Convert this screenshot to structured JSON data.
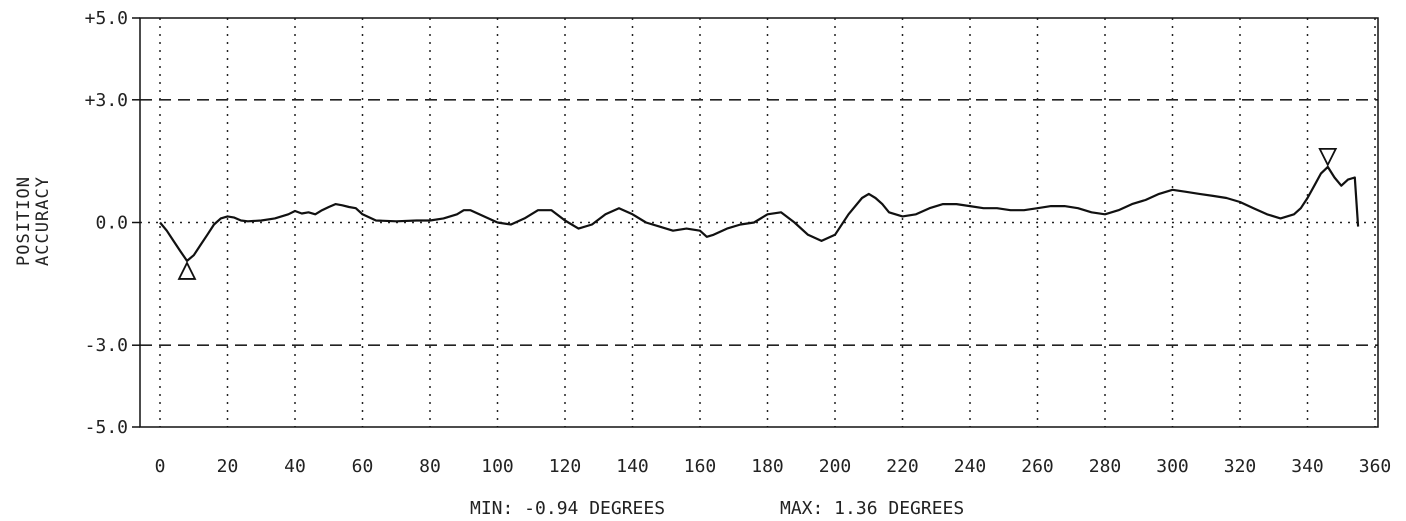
{
  "chart_data": {
    "type": "line",
    "title": "",
    "ylabel_lines": [
      "POSITION",
      "ACCURACY"
    ],
    "xlabel": "",
    "xlim": [
      0,
      360
    ],
    "ylim": [
      -5.0,
      5.0
    ],
    "x_ticks": [
      0,
      20,
      40,
      60,
      80,
      100,
      120,
      140,
      160,
      180,
      200,
      220,
      240,
      260,
      280,
      300,
      320,
      340,
      360
    ],
    "x_tick_labels": [
      "0",
      "20",
      "40",
      "60",
      "80",
      "100",
      "120",
      "140",
      "160",
      "180",
      "200",
      "220",
      "240",
      "260",
      "280",
      "300",
      "320",
      "340",
      "360"
    ],
    "y_ticks": [
      5.0,
      3.0,
      0.0,
      -3.0,
      -5.0
    ],
    "y_tick_labels": [
      "+5.0",
      "+3.0",
      "0.0",
      "-3.0",
      "-5.0"
    ],
    "limit_lines": [
      3.0,
      -3.0
    ],
    "grid": true,
    "series": [
      {
        "x": [
          0,
          2,
          4,
          6,
          8,
          10,
          12,
          14,
          16,
          18,
          20,
          22,
          24,
          26,
          30,
          34,
          38,
          40,
          42,
          44,
          46,
          48,
          50,
          52,
          54,
          56,
          58,
          60,
          64,
          70,
          76,
          80,
          84,
          88,
          90,
          92,
          96,
          100,
          104,
          108,
          112,
          116,
          120,
          124,
          128,
          132,
          136,
          140,
          144,
          148,
          152,
          156,
          160,
          162,
          164,
          168,
          172,
          176,
          180,
          184,
          188,
          192,
          196,
          200,
          204,
          208,
          210,
          212,
          214,
          216,
          220,
          224,
          228,
          232,
          236,
          240,
          244,
          248,
          252,
          256,
          260,
          264,
          268,
          272,
          276,
          280,
          284,
          288,
          292,
          296,
          300,
          304,
          308,
          312,
          316,
          320,
          324,
          328,
          332,
          336,
          338,
          340,
          342,
          344,
          346,
          348,
          350,
          352,
          354,
          355
        ],
        "y": [
          0.0,
          -0.2,
          -0.45,
          -0.7,
          -0.94,
          -0.8,
          -0.55,
          -0.3,
          -0.05,
          0.1,
          0.15,
          0.12,
          0.05,
          0.03,
          0.05,
          0.1,
          0.2,
          0.28,
          0.22,
          0.25,
          0.2,
          0.3,
          0.38,
          0.45,
          0.42,
          0.38,
          0.35,
          0.2,
          0.05,
          0.03,
          0.05,
          0.05,
          0.1,
          0.2,
          0.3,
          0.3,
          0.15,
          0.0,
          -0.05,
          0.1,
          0.3,
          0.3,
          0.05,
          -0.15,
          -0.05,
          0.2,
          0.35,
          0.2,
          0.0,
          -0.1,
          -0.2,
          -0.15,
          -0.2,
          -0.35,
          -0.3,
          -0.15,
          -0.05,
          0.0,
          0.2,
          0.25,
          0.0,
          -0.3,
          -0.45,
          -0.3,
          0.2,
          0.6,
          0.7,
          0.6,
          0.45,
          0.25,
          0.15,
          0.2,
          0.35,
          0.45,
          0.45,
          0.4,
          0.35,
          0.35,
          0.3,
          0.3,
          0.35,
          0.4,
          0.4,
          0.35,
          0.25,
          0.2,
          0.3,
          0.45,
          0.55,
          0.7,
          0.8,
          0.75,
          0.7,
          0.65,
          0.6,
          0.5,
          0.35,
          0.2,
          0.1,
          0.2,
          0.35,
          0.6,
          0.9,
          1.2,
          1.36,
          1.1,
          0.9,
          1.05,
          1.1,
          -0.1
        ]
      }
    ],
    "markers": [
      {
        "type": "min",
        "x": 8,
        "y": -0.94
      },
      {
        "type": "max",
        "x": 346,
        "y": 1.36
      }
    ],
    "footer": {
      "min_text": "MIN: -0.94 DEGREES",
      "max_text": "MAX: 1.36 DEGREES"
    }
  }
}
